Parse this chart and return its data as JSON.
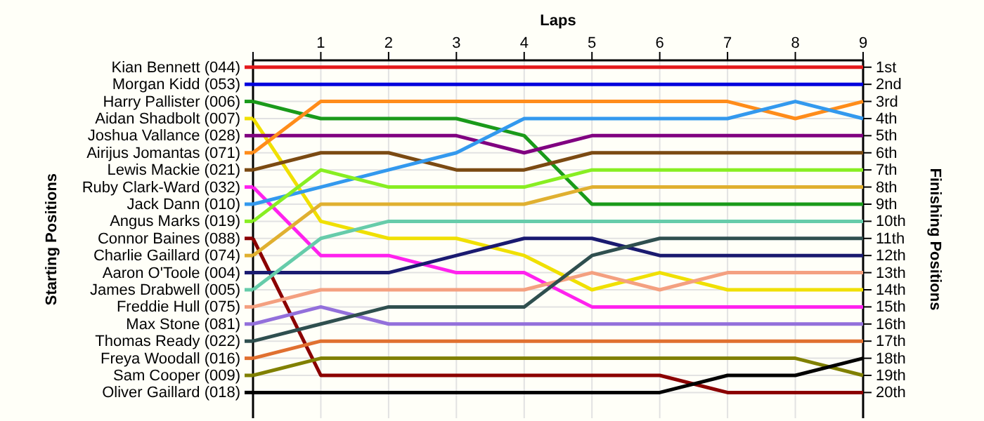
{
  "chart_data": {
    "type": "line",
    "xlabel": "Laps",
    "ylabel": "Finishing Positions",
    "annotations": [
      "Starting Positions"
    ],
    "x": [
      0,
      1,
      2,
      3,
      4,
      5,
      6,
      7,
      8,
      9
    ],
    "xlim": [
      0,
      9
    ],
    "xticks": [
      {
        "value": 0,
        "label": null
      },
      1,
      2,
      3,
      4,
      5,
      6,
      7,
      8,
      9
    ],
    "ylim": [
      21.5,
      0.6
    ],
    "yticks": [
      {
        "value": 1,
        "label": "1st"
      },
      {
        "value": 2,
        "label": "2nd"
      },
      {
        "value": 3,
        "label": "3rd"
      },
      {
        "value": 4,
        "label": "4th"
      },
      {
        "value": 5,
        "label": "5th"
      },
      {
        "value": 6,
        "label": "6th"
      },
      {
        "value": 7,
        "label": "7th"
      },
      {
        "value": 8,
        "label": "8th"
      },
      {
        "value": 9,
        "label": "9th"
      },
      {
        "value": 10,
        "label": "10th"
      },
      {
        "value": 11,
        "label": "11th"
      },
      {
        "value": 12,
        "label": "12th"
      },
      {
        "value": 13,
        "label": "13th"
      },
      {
        "value": 14,
        "label": "14th"
      },
      {
        "value": 15,
        "label": "15th"
      },
      {
        "value": 16,
        "label": "16th"
      },
      {
        "value": 17,
        "label": "17th"
      },
      {
        "value": 18,
        "label": "18th"
      },
      {
        "value": 19,
        "label": "19th"
      },
      {
        "value": 20,
        "label": "20th"
      }
    ],
    "grid": true,
    "legend": "left",
    "marker": "none",
    "line_style": "solid",
    "series": [
      {
        "name": "Kian Bennett (044)",
        "color": "#e41a1c",
        "values": [
          1,
          1,
          1,
          1,
          1,
          1,
          1,
          1,
          1,
          1
        ]
      },
      {
        "name": "Morgan Kidd (053)",
        "color": "#0000dd",
        "values": [
          2,
          2,
          2,
          2,
          2,
          2,
          2,
          2,
          2,
          2
        ]
      },
      {
        "name": "Harry Pallister (006)",
        "color": "#1a9a1a",
        "values": [
          3,
          4,
          4,
          4,
          5,
          9,
          9,
          9,
          9,
          9
        ]
      },
      {
        "name": "Aidan Shadbolt (007)",
        "color": "#f0e000",
        "values": [
          4,
          10,
          11,
          11,
          12,
          14,
          13,
          14,
          14,
          14
        ]
      },
      {
        "name": "Joshua Vallance (028)",
        "color": "#800080",
        "values": [
          5,
          5,
          5,
          5,
          6,
          5,
          5,
          5,
          5,
          5
        ]
      },
      {
        "name": "Airijus Jomantas (071)",
        "color": "#ff8c1a",
        "values": [
          6,
          3,
          3,
          3,
          3,
          3,
          3,
          3,
          4,
          3
        ]
      },
      {
        "name": "Lewis Mackie (021)",
        "color": "#7b4a12",
        "values": [
          7,
          6,
          6,
          7,
          7,
          6,
          6,
          6,
          6,
          6
        ]
      },
      {
        "name": "Ruby Clark-Ward (032)",
        "color": "#ff22ee",
        "values": [
          8,
          12,
          12,
          13,
          13,
          15,
          15,
          15,
          15,
          15
        ]
      },
      {
        "name": "Jack Dann (010)",
        "color": "#3399ee",
        "values": [
          9,
          8,
          7,
          6,
          4,
          4,
          4,
          4,
          3,
          4
        ]
      },
      {
        "name": "Angus Marks (019)",
        "color": "#88ee22",
        "values": [
          10,
          7,
          8,
          8,
          8,
          7,
          7,
          7,
          7,
          7
        ]
      },
      {
        "name": "Connor Baines (088)",
        "color": "#8b0000",
        "values": [
          11,
          19,
          19,
          19,
          19,
          19,
          19,
          20,
          20,
          20
        ]
      },
      {
        "name": "Charlie Gaillard (074)",
        "color": "#e0b030",
        "values": [
          12,
          9,
          9,
          9,
          9,
          8,
          8,
          8,
          8,
          8
        ]
      },
      {
        "name": "Aaron O'Toole (004)",
        "color": "#1a1a70",
        "values": [
          13,
          13,
          13,
          12,
          11,
          11,
          12,
          12,
          12,
          12
        ]
      },
      {
        "name": "James Drabwell (005)",
        "color": "#66ccaa",
        "values": [
          14,
          11,
          10,
          10,
          10,
          10,
          10,
          10,
          10,
          10
        ]
      },
      {
        "name": "Freddie Hull (075)",
        "color": "#f4a080",
        "values": [
          15,
          14,
          14,
          14,
          14,
          13,
          14,
          13,
          13,
          13
        ]
      },
      {
        "name": "Max Stone (081)",
        "color": "#9370db",
        "values": [
          16,
          15,
          16,
          16,
          16,
          16,
          16,
          16,
          16,
          16
        ]
      },
      {
        "name": "Thomas Ready (022)",
        "color": "#2f4f4f",
        "values": [
          17,
          16,
          15,
          15,
          15,
          12,
          11,
          11,
          11,
          11
        ]
      },
      {
        "name": "Freya Woodall (016)",
        "color": "#e07030",
        "values": [
          18,
          17,
          17,
          17,
          17,
          17,
          17,
          17,
          17,
          17
        ]
      },
      {
        "name": "Sam Cooper (009)",
        "color": "#808000",
        "values": [
          19,
          18,
          18,
          18,
          18,
          18,
          18,
          18,
          18,
          19
        ]
      },
      {
        "name": "Oliver Gaillard (018)",
        "color": "#000000",
        "values": [
          20,
          20,
          20,
          20,
          20,
          20,
          20,
          19,
          19,
          18
        ]
      }
    ]
  }
}
